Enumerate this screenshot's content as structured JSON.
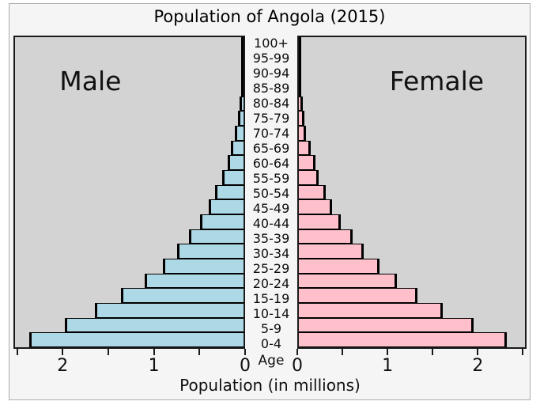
{
  "title": "Population of Angola (2015)",
  "chart_data": {
    "type": "bar",
    "subtype": "population-pyramid",
    "title": "Population of Angola (2015)",
    "xlabel": "Population (in millions)",
    "center_axis_label": "Age",
    "categories": [
      "100+",
      "95-99",
      "90-94",
      "85-89",
      "80-84",
      "75-79",
      "70-74",
      "65-69",
      "60-64",
      "55-59",
      "50-54",
      "45-49",
      "40-44",
      "35-39",
      "30-34",
      "25-29",
      "20-24",
      "15-19",
      "10-14",
      "5-9",
      "0-4"
    ],
    "series": [
      {
        "name": "Male",
        "side": "left",
        "color": "#add8e6",
        "values": [
          0.0,
          0.01,
          0.02,
          0.03,
          0.04,
          0.06,
          0.1,
          0.14,
          0.18,
          0.24,
          0.32,
          0.39,
          0.48,
          0.61,
          0.74,
          0.9,
          1.1,
          1.36,
          1.65,
          1.99,
          2.38
        ]
      },
      {
        "name": "Female",
        "side": "right",
        "color": "#ffc0cb",
        "values": [
          0.0,
          0.01,
          0.01,
          0.02,
          0.04,
          0.06,
          0.08,
          0.13,
          0.19,
          0.22,
          0.3,
          0.37,
          0.47,
          0.6,
          0.73,
          0.91,
          1.1,
          1.33,
          1.62,
          1.96,
          2.34
        ]
      }
    ],
    "xlim": [
      0,
      2.54
    ],
    "ticks": {
      "values": [
        0,
        0.5,
        1,
        1.5,
        2,
        2.5
      ],
      "labeled_values": [
        "2",
        "1",
        "0"
      ],
      "labeled_at": [
        2,
        1,
        0
      ]
    },
    "grid": false,
    "legend": "none",
    "plot_bg": "#d3d3d3",
    "figure_bg": "#f5f5f5",
    "bar_edge_color": "#000000"
  }
}
